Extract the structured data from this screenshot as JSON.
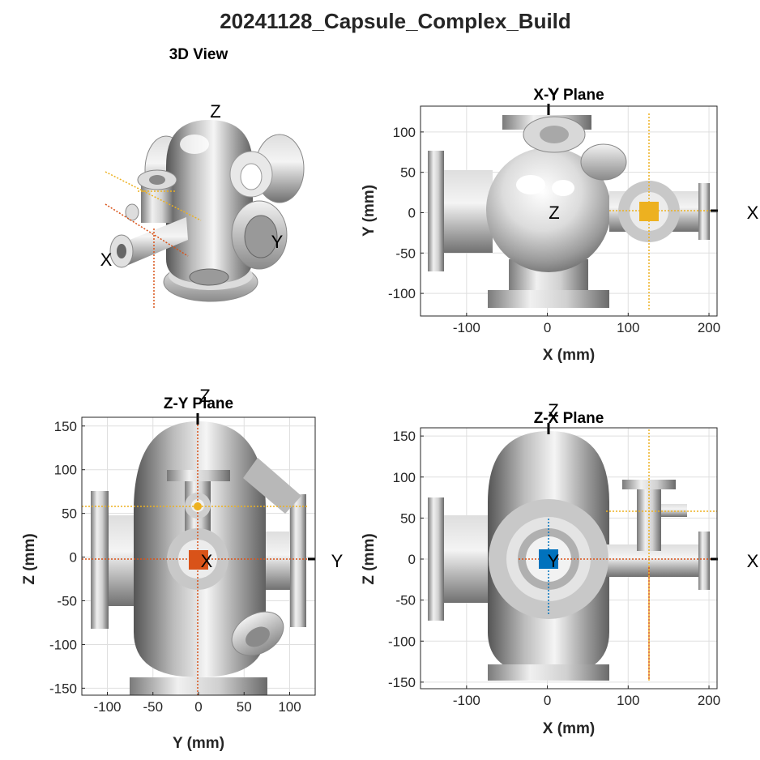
{
  "figure_title": "20241128_Capsule_Complex_Build",
  "colors": {
    "metal_light": "#ececec",
    "metal_mid": "#bdbdbd",
    "metal_dark": "#6f6f6f",
    "crosshair_orange": "#edb120",
    "crosshair_red": "#d95319",
    "crosshair_blue": "#0072bd",
    "axis_text": "#262626"
  },
  "panels": {
    "view3d": {
      "title": "3D View",
      "axis_markers": {
        "x": "X",
        "y": "Y",
        "z": "Z"
      }
    },
    "xy": {
      "title": "X-Y Plane",
      "xlabel": "X (mm)",
      "ylabel": "Y (mm)",
      "marker_right": "X",
      "marker_top": "Y",
      "marker_center": "Z"
    },
    "zy": {
      "title": "Z-Y Plane",
      "xlabel": "Y (mm)",
      "ylabel": "Z (mm)",
      "marker_right": "Y",
      "marker_top": "Z",
      "marker_center": "X"
    },
    "zx": {
      "title": "Z-X Plane",
      "xlabel": "X (mm)",
      "ylabel": "Z (mm)",
      "marker_right": "X",
      "marker_top": "Z",
      "marker_center": "Y"
    }
  },
  "chart_data": [
    {
      "type": "other",
      "title": "3D View",
      "annotations": [
        "X",
        "Y",
        "Z"
      ]
    },
    {
      "type": "other",
      "title": "X-Y Plane",
      "xlabel": "X (mm)",
      "ylabel": "Y (mm)",
      "xlim": [
        -157,
        210
      ],
      "ylim": [
        -128,
        132
      ],
      "xticks": [
        -100,
        0,
        100,
        200
      ],
      "yticks": [
        -100,
        -50,
        0,
        50,
        100
      ],
      "grid": true,
      "crosshair": {
        "x": 125,
        "y": 0,
        "marker_color": "orange"
      },
      "annotations": [
        "X",
        "Y",
        "Z"
      ]
    },
    {
      "type": "other",
      "title": "Z-Y Plane",
      "xlabel": "Y (mm)",
      "ylabel": "Z (mm)",
      "xlim": [
        -128,
        128
      ],
      "ylim": [
        -158,
        160
      ],
      "xticks": [
        -100,
        -50,
        0,
        50,
        100
      ],
      "yticks": [
        -150,
        -100,
        -50,
        0,
        50,
        100,
        150
      ],
      "grid": true,
      "crosshairs": [
        {
          "y": 60,
          "color": "orange"
        },
        {
          "y": 0,
          "color": "red"
        }
      ],
      "annotations": [
        "Y",
        "Z",
        "X"
      ]
    },
    {
      "type": "other",
      "title": "Z-X Plane",
      "xlabel": "X (mm)",
      "ylabel": "Z (mm)",
      "xlim": [
        -157,
        210
      ],
      "ylim": [
        -158,
        160
      ],
      "xticks": [
        -100,
        0,
        100,
        200
      ],
      "yticks": [
        -150,
        -100,
        -50,
        0,
        50,
        100,
        150
      ],
      "grid": true,
      "crosshairs": [
        {
          "x": 125,
          "color": "orange"
        },
        {
          "x": 0,
          "color": "blue"
        }
      ],
      "annotations": [
        "X",
        "Z",
        "Y"
      ]
    }
  ]
}
